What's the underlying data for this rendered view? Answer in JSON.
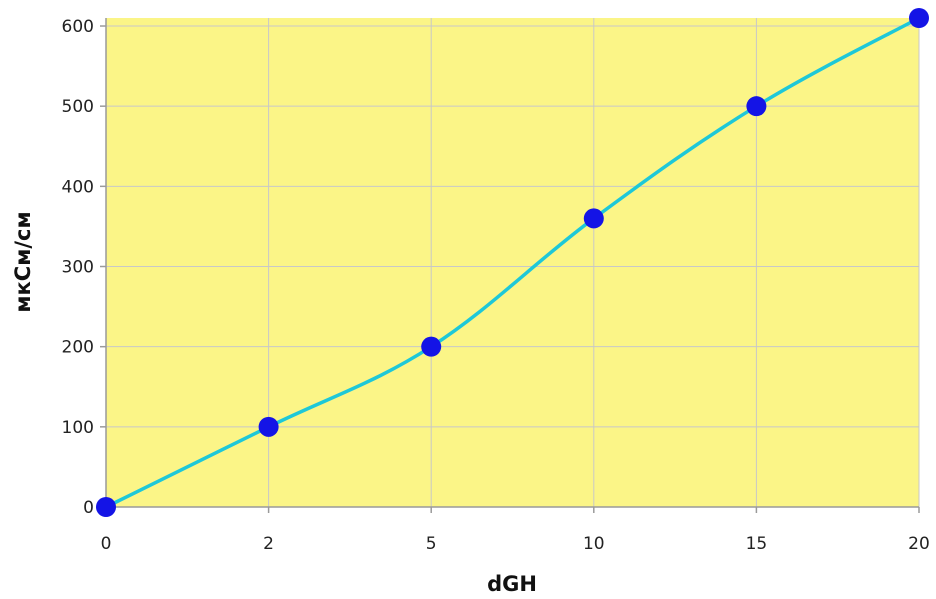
{
  "chart_data": {
    "type": "line",
    "title": "",
    "xlabel": "dGH",
    "ylabel": "мкСм/см",
    "categories": [
      "0",
      "2",
      "5",
      "10",
      "15",
      "20"
    ],
    "series": [
      {
        "values": [
          0,
          100,
          200,
          360,
          500,
          610
        ]
      }
    ],
    "yticks": [
      "0",
      "100",
      "200",
      "300",
      "400",
      "500",
      "600"
    ],
    "ylim": [
      0,
      610
    ],
    "grid": true,
    "legend": "none",
    "colors": {
      "plot_background": "#fbf587",
      "line": "#1ec8d8",
      "marker": "#1414e6",
      "grid": "#c8c8c8"
    }
  }
}
